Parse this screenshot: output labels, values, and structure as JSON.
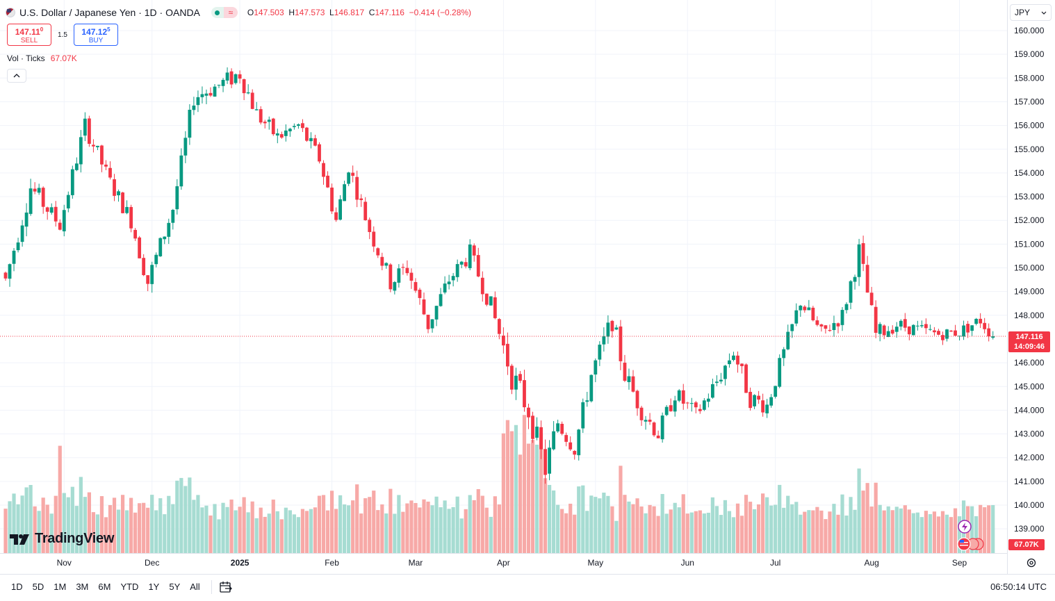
{
  "symbol": {
    "title": "U.S. Dollar / Japanese Yen · 1D · OANDA",
    "ohlc": {
      "o_label": "O",
      "o_value": "147.503",
      "h_label": "H",
      "h_value": "147.573",
      "l_label": "L",
      "l_value": "146.817",
      "c_label": "C",
      "c_value": "147.116",
      "change": "−0.414 (−0.28%)"
    }
  },
  "trade": {
    "sell_price_main": "147.11",
    "sell_price_sup": "0",
    "sell_label": "SELL",
    "spread": "1.5",
    "buy_price_main": "147.12",
    "buy_price_sup": "5",
    "buy_label": "BUY"
  },
  "volume_legend": {
    "label": "Vol · Ticks",
    "value": "67.07K"
  },
  "currency": "JPY",
  "last_price": {
    "price": "147.116",
    "countdown": "14:09:46"
  },
  "volume_tag": "67.07K",
  "logo_text": "TradingView",
  "bottom_bar": {
    "ranges": [
      "1D",
      "5D",
      "1M",
      "3M",
      "6M",
      "YTD",
      "1Y",
      "5Y",
      "All"
    ],
    "time": "06:50:14 UTC"
  },
  "colors": {
    "up": "#089981",
    "down": "#f23645",
    "up_vol": "#a6dcd2",
    "down_vol": "#f7a9a7",
    "grid": "#f0f3fa"
  },
  "chart_data": {
    "type": "candlestick",
    "interval": "1D",
    "ylim": [
      138.5,
      160.3
    ],
    "y_ticks": [
      "160.000",
      "159.000",
      "158.000",
      "157.000",
      "156.000",
      "155.000",
      "154.000",
      "153.000",
      "152.000",
      "151.000",
      "150.000",
      "149.000",
      "148.000",
      "146.000",
      "145.000",
      "144.000",
      "143.000",
      "142.000",
      "141.000",
      "140.000",
      "139.000"
    ],
    "x_ticks": [
      {
        "label": "Nov",
        "index": 14
      },
      {
        "label": "Dec",
        "index": 35
      },
      {
        "label": "2025",
        "index": 56
      },
      {
        "label": "Feb",
        "index": 78
      },
      {
        "label": "Mar",
        "index": 98
      },
      {
        "label": "Apr",
        "index": 119
      },
      {
        "label": "May",
        "index": 141
      },
      {
        "label": "Jun",
        "index": 163
      },
      {
        "label": "Jul",
        "index": 184
      },
      {
        "label": "Aug",
        "index": 207
      },
      {
        "label": "Sep",
        "index": 228
      }
    ],
    "anchors": [
      [
        0,
        149.5,
        0.85
      ],
      [
        6,
        153.4,
        0.95
      ],
      [
        13,
        151.8,
        0.7
      ],
      [
        19,
        156.0,
        0.8
      ],
      [
        25,
        153.6,
        0.7
      ],
      [
        30,
        152.0,
        0.75
      ],
      [
        34,
        149.4,
        0.9
      ],
      [
        40,
        152.5,
        0.7
      ],
      [
        45,
        157.2,
        0.85
      ],
      [
        51,
        157.7,
        0.75
      ],
      [
        56,
        158.2,
        0.9
      ],
      [
        60,
        156.5,
        0.8
      ],
      [
        65,
        155.5,
        0.75
      ],
      [
        70,
        156.0,
        0.7
      ],
      [
        75,
        154.6,
        0.75
      ],
      [
        79,
        152.0,
        0.8
      ],
      [
        82,
        154.3,
        0.7
      ],
      [
        87,
        151.6,
        0.7
      ],
      [
        92,
        149.4,
        0.85
      ],
      [
        96,
        150.0,
        0.9
      ],
      [
        101,
        147.6,
        0.85
      ],
      [
        106,
        149.5,
        0.7
      ],
      [
        111,
        150.6,
        0.8
      ],
      [
        116,
        148.4,
        0.8
      ],
      [
        121,
        145.5,
        1.3
      ],
      [
        125,
        144.0,
        1.2
      ],
      [
        129,
        141.5,
        1.1
      ],
      [
        132,
        143.5,
        0.9
      ],
      [
        136,
        142.4,
        0.8
      ],
      [
        140,
        145.5,
        0.9
      ],
      [
        145,
        147.8,
        0.95
      ],
      [
        148,
        145.5,
        0.9
      ],
      [
        152,
        144.0,
        0.85
      ],
      [
        156,
        143.0,
        0.8
      ],
      [
        160,
        144.7,
        0.75
      ],
      [
        165,
        143.8,
        0.75
      ],
      [
        170,
        145.2,
        0.75
      ],
      [
        174,
        146.5,
        0.8
      ],
      [
        178,
        144.5,
        0.85
      ],
      [
        182,
        144.2,
        0.8
      ],
      [
        186,
        146.4,
        0.75
      ],
      [
        190,
        148.6,
        0.7
      ],
      [
        195,
        147.2,
        0.75
      ],
      [
        200,
        148.0,
        0.7
      ],
      [
        204,
        150.7,
        0.9
      ],
      [
        208,
        147.2,
        0.8
      ],
      [
        213,
        147.6,
        0.6
      ],
      [
        218,
        147.4,
        0.6
      ],
      [
        223,
        147.2,
        0.55
      ],
      [
        228,
        147.3,
        0.55
      ],
      [
        233,
        147.8,
        0.6
      ],
      [
        236,
        147.116,
        0.6
      ]
    ],
    "volume_ticks_max": 170000,
    "last_volume": 67070,
    "last_close": 147.116
  }
}
